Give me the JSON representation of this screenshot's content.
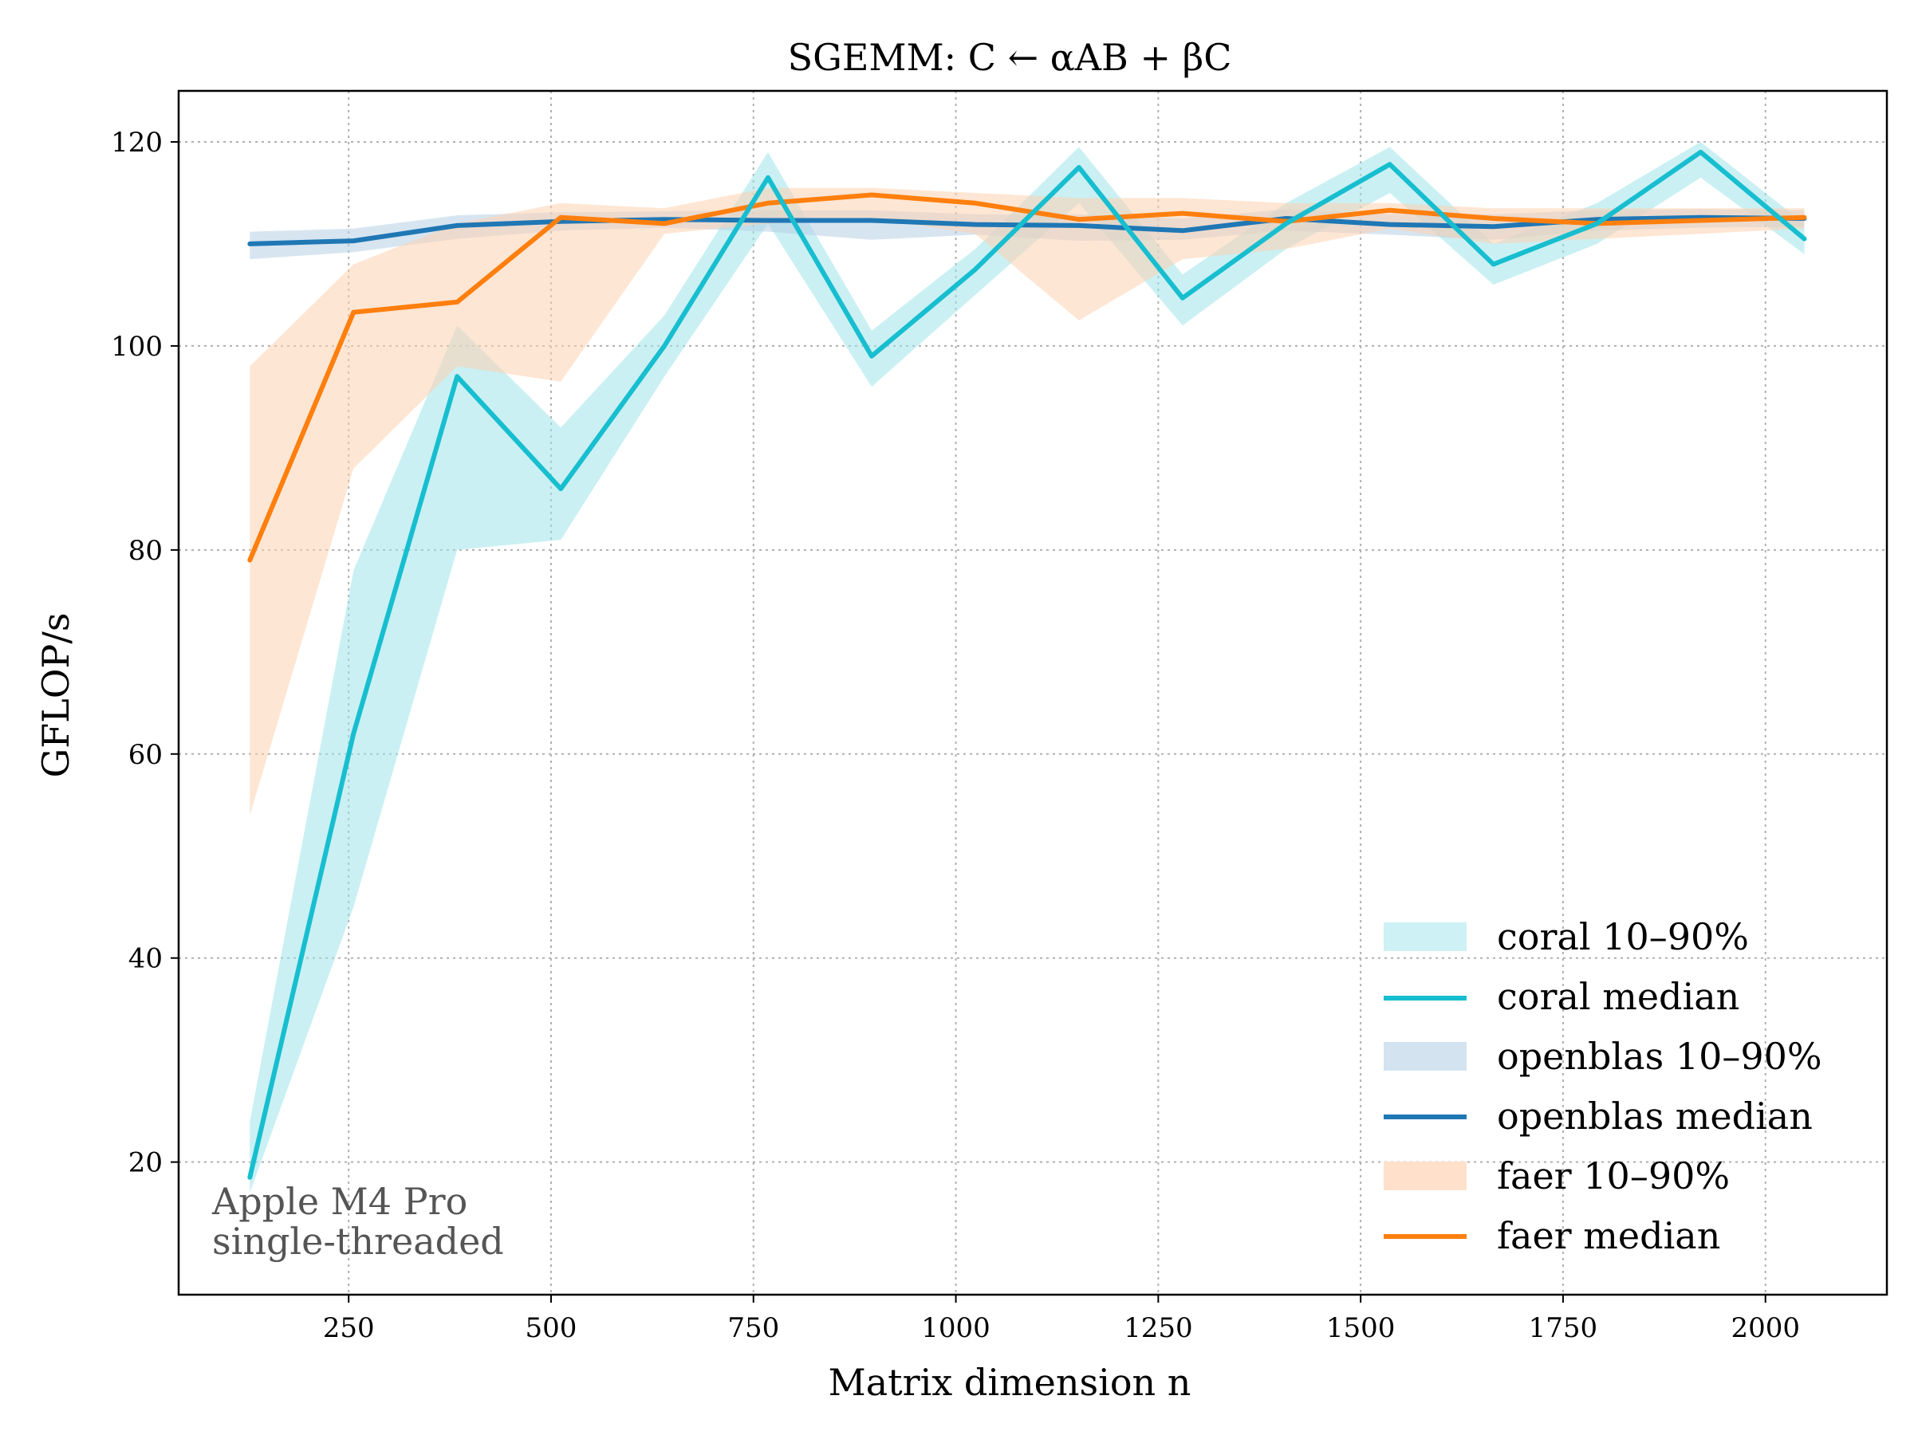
{
  "chart_data": {
    "type": "line",
    "title": "SGEMM: C ← αAB + βC",
    "xlabel": "Matrix dimension n",
    "ylabel": "GFLOP/s",
    "xlim": [
      40,
      2150
    ],
    "ylim": [
      7,
      125
    ],
    "xticks": [
      250,
      500,
      750,
      1000,
      1250,
      1500,
      1750,
      2000
    ],
    "yticks": [
      20,
      40,
      60,
      80,
      100,
      120
    ],
    "grid": true,
    "legend_position": "lower-right",
    "annotation": [
      "Apple M4 Pro",
      "single-threaded"
    ],
    "x": [
      128,
      256,
      384,
      512,
      640,
      768,
      896,
      1024,
      1152,
      1280,
      1408,
      1536,
      1664,
      1792,
      1920,
      2048
    ],
    "series": [
      {
        "name": "coral",
        "band_label": "coral 10–90%",
        "median_label": "coral median",
        "color": "#17becf",
        "band_color": "#9fe3ea",
        "median": [
          18.5,
          62,
          97,
          86,
          100,
          116.5,
          99,
          107.5,
          117.5,
          104.7,
          112,
          117.8,
          108,
          112,
          119,
          110.5
        ],
        "p10": [
          17,
          45,
          80,
          81,
          97,
          112,
          96,
          105,
          114,
          102,
          109.5,
          115,
          106,
          110,
          116.5,
          109
        ],
        "p90": [
          24,
          78,
          102,
          92,
          103,
          119,
          101.5,
          109.5,
          119.5,
          107,
          114,
          119.5,
          110,
          114,
          120,
          112
        ]
      },
      {
        "name": "openblas",
        "band_label": "openblas 10–90%",
        "median_label": "openblas median",
        "color": "#1f77b4",
        "band_color": "#b7cfe6",
        "median": [
          110,
          110.3,
          111.8,
          112.2,
          112.4,
          112.3,
          112.3,
          111.9,
          111.8,
          111.3,
          112.5,
          111.9,
          111.7,
          112.4,
          112.6,
          112.5
        ],
        "p10": [
          108.5,
          109.2,
          110.5,
          111.3,
          111.6,
          111.2,
          110.4,
          110.9,
          110.3,
          110.4,
          111.3,
          110.9,
          110.4,
          111.3,
          111.6,
          111.7
        ],
        "p90": [
          111.2,
          111.5,
          112.8,
          113.1,
          113.2,
          113.3,
          113.3,
          112.9,
          112.9,
          112.5,
          113.4,
          112.9,
          112.9,
          113.3,
          113.4,
          113.3
        ]
      },
      {
        "name": "faer",
        "band_label": "faer 10–90%",
        "median_label": "faer median",
        "color": "#ff7f0e",
        "band_color": "#fed2b0",
        "median": [
          79,
          103.3,
          104.3,
          112.6,
          112,
          114,
          114.8,
          114,
          112.4,
          113,
          112.2,
          113.3,
          112.5,
          112,
          112.3,
          112.6
        ],
        "p10": [
          54,
          88,
          98,
          96.5,
          111,
          112,
          112.5,
          111,
          102.5,
          108.5,
          109.5,
          111.5,
          110,
          110.5,
          111,
          111.5
        ],
        "p90": [
          98,
          108,
          112,
          114,
          113.5,
          115.5,
          115.5,
          115,
          114.5,
          114.5,
          114,
          114,
          113.5,
          113.5,
          113.5,
          113.5
        ]
      }
    ]
  }
}
